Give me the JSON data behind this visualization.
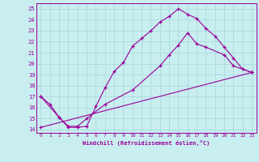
{
  "xlabel": "Windchill (Refroidissement éolien,°C)",
  "bg_color": "#c8eef0",
  "grid_color": "#b0dde0",
  "line_color": "#990099",
  "xlim": [
    -0.5,
    23.5
  ],
  "ylim": [
    13.7,
    25.5
  ],
  "xticks": [
    0,
    1,
    2,
    3,
    4,
    5,
    6,
    7,
    8,
    9,
    10,
    11,
    12,
    13,
    14,
    15,
    16,
    17,
    18,
    19,
    20,
    21,
    22,
    23
  ],
  "yticks": [
    14,
    15,
    16,
    17,
    18,
    19,
    20,
    21,
    22,
    23,
    24,
    25
  ],
  "line1_x": [
    0,
    1,
    2,
    3,
    4,
    5,
    6,
    7,
    8,
    9,
    10,
    11,
    12,
    13,
    14,
    15,
    16,
    17,
    18,
    19,
    20,
    21,
    22,
    23
  ],
  "line1_y": [
    17.0,
    16.3,
    15.1,
    14.2,
    14.2,
    14.3,
    16.1,
    17.8,
    19.3,
    20.1,
    21.6,
    22.3,
    23.0,
    23.8,
    24.3,
    25.0,
    24.5,
    24.1,
    23.2,
    22.5,
    21.5,
    20.5,
    19.5,
    19.2
  ],
  "line2_x": [
    0,
    2,
    3,
    4,
    5,
    7,
    10,
    13,
    14,
    15,
    16,
    17,
    18,
    20,
    21,
    23
  ],
  "line2_y": [
    17.0,
    15.1,
    14.3,
    14.3,
    15.0,
    16.3,
    17.6,
    19.8,
    20.8,
    21.7,
    22.8,
    21.8,
    21.5,
    20.8,
    19.8,
    19.2
  ],
  "line3_x": [
    0,
    23
  ],
  "line3_y": [
    14.2,
    19.2
  ]
}
